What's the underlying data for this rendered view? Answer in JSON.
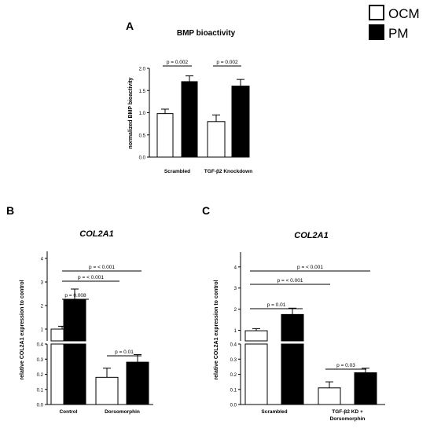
{
  "legend": [
    {
      "label": "OCM",
      "color": "#ffffff"
    },
    {
      "label": "PM",
      "color": "#000000"
    }
  ],
  "chart_data": [
    {
      "panel": "A",
      "type": "bar",
      "title": "BMP bioactivity",
      "ylabel": "normalized BMP bioactivity",
      "categories": [
        "Scrambled",
        "TGF-β2 Knockdown"
      ],
      "series": [
        {
          "name": "OCM",
          "values": [
            0.98,
            0.8
          ],
          "errors": [
            0.1,
            0.15
          ]
        },
        {
          "name": "PM",
          "values": [
            1.7,
            1.6
          ],
          "errors": [
            0.13,
            0.15
          ]
        }
      ],
      "ylim": [
        0,
        2.0
      ],
      "yticks": [
        "0.0",
        "0.5",
        "1.0",
        "1.5",
        "2.0"
      ],
      "annotations": [
        "p = 0.002",
        "p = 0.002"
      ]
    },
    {
      "panel": "B",
      "type": "bar",
      "title": "COL2A1",
      "ylabel": "relative COL2A1 expression to control",
      "categories": [
        "Control",
        "Dorsomorphin"
      ],
      "series": [
        {
          "name": "OCM",
          "values": [
            1.0,
            0.18
          ],
          "errors": [
            0.12,
            0.06
          ]
        },
        {
          "name": "PM",
          "values": [
            2.25,
            0.28
          ],
          "errors": [
            0.45,
            0.05
          ]
        }
      ],
      "yticks_upper": [
        "1",
        "2",
        "3",
        "4"
      ],
      "yticks_lower": [
        "0.0",
        "0.1",
        "0.2",
        "0.3",
        "0.4"
      ],
      "annotations": [
        "p = 0.008",
        "p = < 0.001",
        "p = < 0.001",
        "p = 0.01"
      ]
    },
    {
      "panel": "C",
      "type": "bar",
      "title": "COL2A1",
      "ylabel": "relative COL2A1 expression to control",
      "categories": [
        "Scrambled",
        "TGF-β2 KD + Dorsomorphin"
      ],
      "series": [
        {
          "name": "OCM",
          "values": [
            0.98,
            0.11
          ],
          "errors": [
            0.1,
            0.04
          ]
        },
        {
          "name": "PM",
          "values": [
            1.75,
            0.21
          ],
          "errors": [
            0.3,
            0.03
          ]
        }
      ],
      "yticks_upper": [
        "1",
        "2",
        "3",
        "4"
      ],
      "yticks_lower": [
        "0.0",
        "0.1",
        "0.2",
        "0.3",
        "0.4"
      ],
      "annotations": [
        "p = 0.01",
        "p = < 0.001",
        "p = < 0.001",
        "p = 0.03"
      ]
    }
  ]
}
